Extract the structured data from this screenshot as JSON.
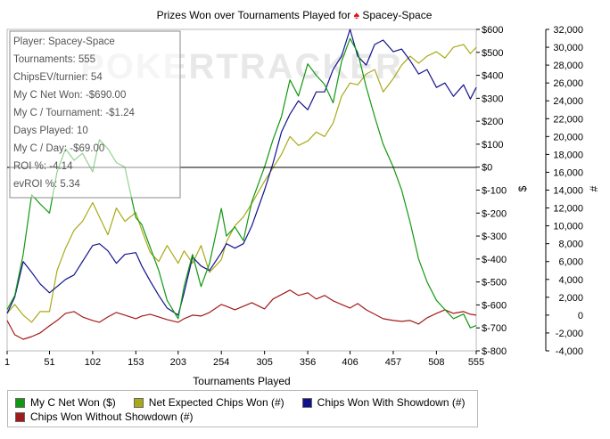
{
  "chart_data": {
    "type": "line",
    "title": "Prizes Won over Tournaments Played for",
    "player_name": "Spacey-Space",
    "xlabel": "Tournaments Played",
    "x_ticks": [
      "1",
      "51",
      "102",
      "153",
      "203",
      "254",
      "305",
      "356",
      "406",
      "457",
      "508",
      "555"
    ],
    "x_range": [
      1,
      555
    ],
    "y_left": {
      "label": "$",
      "range": [
        -800,
        600
      ],
      "ticks": [
        "$600",
        "$500",
        "$400",
        "$300",
        "$200",
        "$100",
        "$0",
        "$-100",
        "$-200",
        "$-300",
        "$-400",
        "$-500",
        "$-600",
        "$-700",
        "$-800"
      ]
    },
    "y_right": {
      "label": "#",
      "range": [
        -4000,
        32000
      ],
      "ticks": [
        "32,000",
        "30,000",
        "28,000",
        "26,000",
        "24,000",
        "22,000",
        "20,000",
        "18,000",
        "16,000",
        "14,000",
        "12,000",
        "10,000",
        "8,000",
        "6,000",
        "4,000",
        "2,000",
        "0",
        "-2,000",
        "-4,000"
      ]
    },
    "watermark": "POKERTRACKER",
    "stats_box": [
      "Player: Spacey-Space",
      "Tournaments: 555",
      "ChipsEV/turnier: 54",
      "My C Net Won: -$690.00",
      "My C / Tournament: -$1.24",
      "Days Played: 10",
      "My C / Day: -$69.00",
      "ROI %: -4.14",
      "evROI %: 5.34"
    ],
    "series": [
      {
        "name": "My C Net Won ($)",
        "axis": "left",
        "color": "#119911",
        "x": [
          1,
          10,
          20,
          30,
          40,
          51,
          60,
          70,
          80,
          90,
          102,
          110,
          120,
          130,
          140,
          153,
          160,
          170,
          180,
          190,
          203,
          210,
          220,
          230,
          240,
          254,
          260,
          270,
          280,
          290,
          305,
          315,
          325,
          335,
          345,
          356,
          366,
          376,
          386,
          396,
          406,
          415,
          425,
          435,
          445,
          457,
          467,
          477,
          487,
          497,
          508,
          518,
          528,
          540,
          548,
          555
        ],
        "y": [
          -620,
          -560,
          -380,
          -120,
          -160,
          -200,
          -20,
          80,
          30,
          60,
          -20,
          120,
          80,
          20,
          0,
          -220,
          -250,
          -350,
          -450,
          -580,
          -660,
          -520,
          -380,
          -520,
          -420,
          -180,
          -300,
          -260,
          -320,
          -150,
          0,
          120,
          220,
          380,
          310,
          450,
          400,
          360,
          280,
          460,
          560,
          500,
          350,
          220,
          100,
          0,
          -100,
          -240,
          -400,
          -500,
          -580,
          -620,
          -660,
          -640,
          -700,
          -690
        ]
      },
      {
        "name": "Net Expected Chips Won (#)",
        "axis": "right",
        "color": "#a9a918",
        "x": [
          1,
          10,
          20,
          30,
          40,
          51,
          60,
          70,
          80,
          90,
          102,
          110,
          120,
          130,
          140,
          153,
          160,
          170,
          180,
          190,
          203,
          210,
          220,
          230,
          240,
          254,
          260,
          270,
          280,
          290,
          305,
          315,
          325,
          335,
          345,
          356,
          366,
          376,
          386,
          396,
          406,
          415,
          425,
          435,
          445,
          457,
          467,
          477,
          487,
          497,
          508,
          518,
          528,
          540,
          548,
          555
        ],
        "y": [
          200,
          1200,
          0,
          -800,
          400,
          400,
          5000,
          7500,
          9500,
          10500,
          12600,
          11000,
          9000,
          12000,
          10500,
          11500,
          9500,
          7000,
          6000,
          7800,
          5800,
          7200,
          5800,
          7800,
          4800,
          6200,
          8200,
          10000,
          11000,
          12500,
          15000,
          16500,
          18000,
          20000,
          19000,
          19500,
          20500,
          20000,
          21500,
          24500,
          26000,
          25800,
          27000,
          27500,
          25000,
          26500,
          28000,
          29000,
          28200,
          29000,
          29500,
          28800,
          30000,
          30300,
          29300,
          30000
        ]
      },
      {
        "name": "Chips Won With Showdown (#)",
        "axis": "right",
        "color": "#11118f",
        "x": [
          1,
          10,
          20,
          30,
          40,
          51,
          60,
          70,
          80,
          90,
          102,
          110,
          120,
          130,
          140,
          153,
          160,
          170,
          180,
          190,
          203,
          210,
          220,
          230,
          240,
          254,
          260,
          270,
          280,
          290,
          305,
          315,
          325,
          335,
          345,
          356,
          366,
          376,
          386,
          396,
          406,
          415,
          425,
          435,
          445,
          457,
          467,
          477,
          487,
          497,
          508,
          518,
          528,
          540,
          548,
          555
        ],
        "y": [
          200,
          2000,
          6000,
          4800,
          3500,
          2500,
          3200,
          4000,
          4500,
          6000,
          7800,
          8000,
          7200,
          5800,
          6800,
          7000,
          5500,
          3800,
          2200,
          800,
          0,
          2500,
          6500,
          5500,
          5000,
          7000,
          8000,
          7500,
          8000,
          10000,
          14000,
          17000,
          20500,
          22500,
          24000,
          23000,
          25000,
          25000,
          27500,
          29000,
          32000,
          29000,
          28000,
          30300,
          30800,
          29500,
          29800,
          28500,
          27000,
          27500,
          25500,
          26000,
          24500,
          25800,
          24200,
          25500
        ]
      },
      {
        "name": "Chips Won Without Showdown (#)",
        "axis": "right",
        "color": "#a31a1a",
        "x": [
          1,
          10,
          20,
          30,
          40,
          51,
          60,
          70,
          80,
          90,
          102,
          110,
          120,
          130,
          140,
          153,
          160,
          170,
          180,
          190,
          203,
          210,
          220,
          230,
          240,
          254,
          260,
          270,
          280,
          290,
          305,
          315,
          325,
          335,
          345,
          356,
          366,
          376,
          386,
          396,
          406,
          415,
          425,
          435,
          445,
          457,
          467,
          477,
          487,
          497,
          508,
          518,
          528,
          540,
          548,
          555
        ],
        "y": [
          -600,
          -2200,
          -2700,
          -2400,
          -2000,
          -1200,
          -600,
          200,
          400,
          -200,
          -600,
          -800,
          -200,
          300,
          0,
          -400,
          -100,
          100,
          -200,
          -500,
          -800,
          -400,
          0,
          -100,
          300,
          1200,
          1000,
          600,
          1000,
          1400,
          700,
          1800,
          2300,
          2800,
          2200,
          2500,
          1800,
          2200,
          1600,
          1200,
          800,
          1300,
          600,
          100,
          -400,
          -600,
          -700,
          -600,
          -1000,
          -300,
          200,
          600,
          200,
          400,
          100,
          0
        ]
      }
    ],
    "legend_placement": "bottom"
  },
  "legend": [
    {
      "label": "My C Net Won ($)",
      "color": "#119911"
    },
    {
      "label": "Net Expected Chips Won (#)",
      "color": "#a9a918"
    },
    {
      "label": "Chips Won With Showdown (#)",
      "color": "#11118f"
    },
    {
      "label": "Chips Won Without Showdown (#)",
      "color": "#a31a1a"
    }
  ]
}
